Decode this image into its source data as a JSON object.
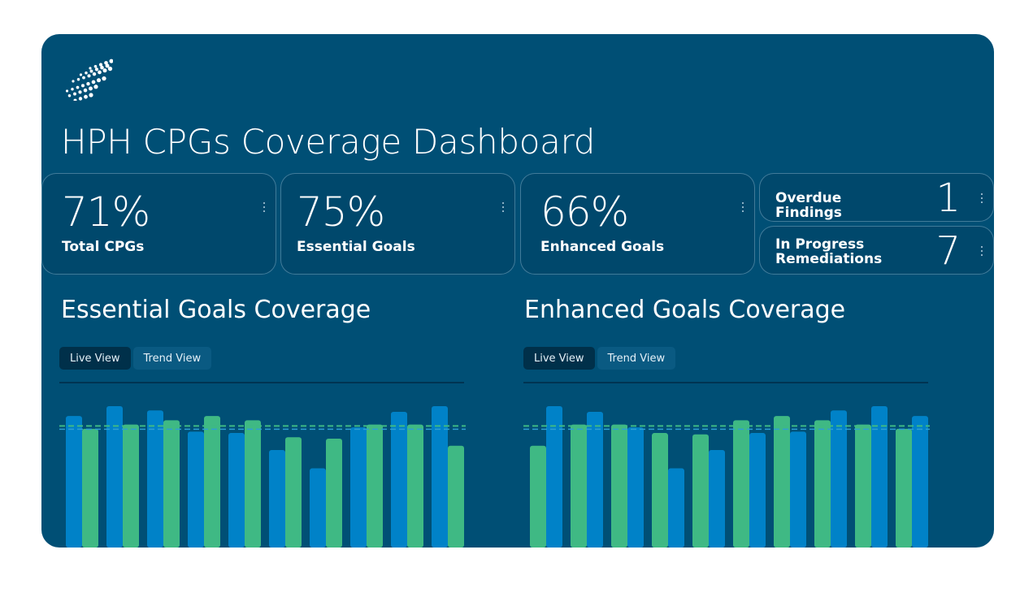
{
  "dashboard": {
    "title": "HPH CPGs Coverage Dashboard",
    "logo_icon": "dotted-globe-logo"
  },
  "kpis": [
    {
      "value": "71%",
      "label": "Total CPGs"
    },
    {
      "value": "75%",
      "label": "Essential Goals"
    },
    {
      "value": "66%",
      "label": "Enhanced Goals"
    }
  ],
  "small_kpis": [
    {
      "label": "Overdue Findings",
      "value": "1"
    },
    {
      "label": "In Progress Remediations",
      "value": "7"
    }
  ],
  "menu_icon": "kebab-menu-icon",
  "colors": {
    "panel": "#004f75",
    "series_blue": "#0082c8",
    "series_green": "#3fb984",
    "threshold": "#3fb984",
    "active_toggle": "#00304a"
  },
  "sections": [
    {
      "title": "Essential Goals Coverage",
      "toggle": {
        "live": "Live View",
        "trend": "Trend View",
        "selected": "live"
      },
      "chart_data": {
        "type": "bar",
        "ylim": [
          0,
          100
        ],
        "threshold": 86,
        "series": [
          {
            "color": "#0082c8",
            "values": [
              93,
              100,
              97,
              82,
              81,
              69,
              56,
              85,
              96,
              100
            ]
          },
          {
            "color": "#3fb984",
            "values": [
              84,
              87,
              90,
              93,
              90,
              78,
              77,
              87,
              87,
              72
            ]
          }
        ]
      }
    },
    {
      "title": "Enhanced Goals Coverage",
      "toggle": {
        "live": "Live View",
        "trend": "Trend View",
        "selected": "live"
      },
      "chart_data": {
        "type": "bar",
        "ylim": [
          0,
          100
        ],
        "threshold": 86,
        "series": [
          {
            "color": "#3fb984",
            "values": [
              72,
              87,
              87,
              81,
              80,
              90,
              93,
              90,
              87,
              84
            ]
          },
          {
            "color": "#0082c8",
            "values": [
              100,
              96,
              85,
              56,
              69,
              81,
              82,
              97,
              100,
              93
            ]
          }
        ]
      }
    }
  ]
}
